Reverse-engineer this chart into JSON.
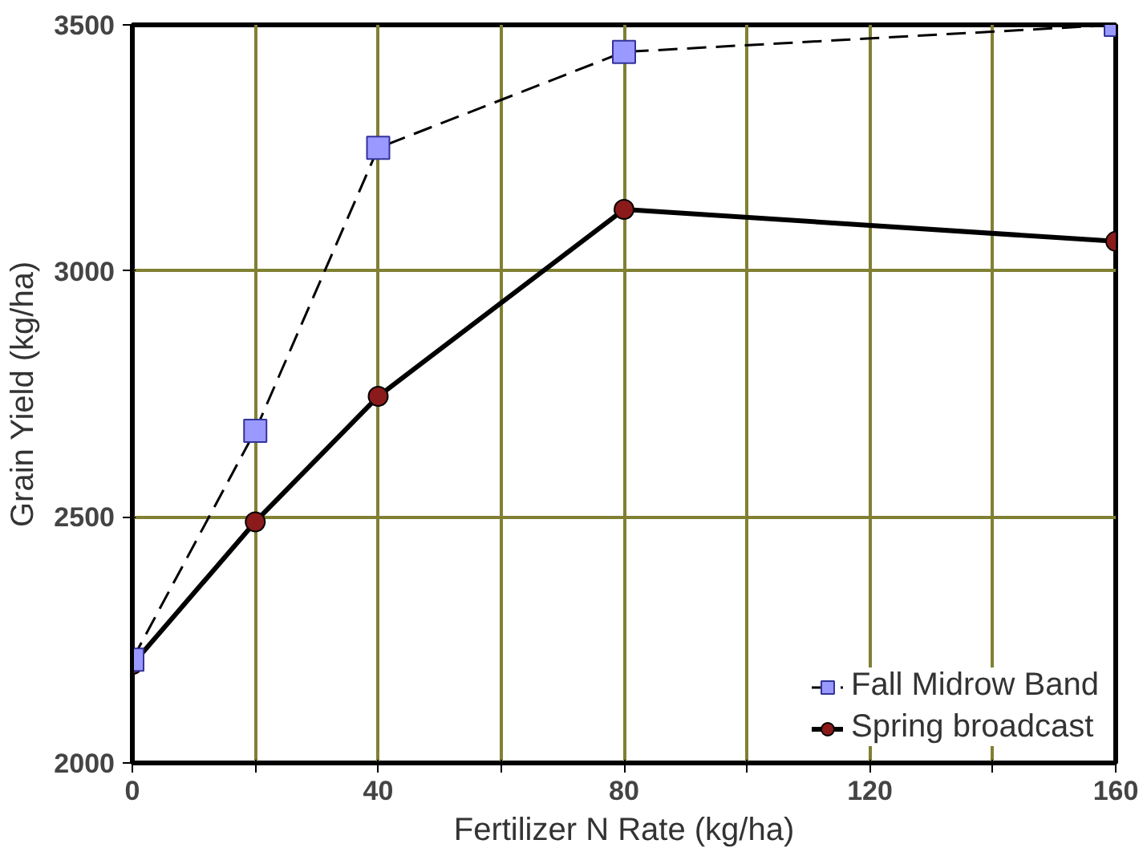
{
  "chart_data": {
    "type": "line",
    "xlabel": "Fertilizer N Rate (kg/ha)",
    "ylabel": "Grain Yield (kg/ha)",
    "x": [
      0,
      20,
      40,
      80,
      160
    ],
    "series": [
      {
        "name": "Fall Midrow Band",
        "color": "#9999ff",
        "values": [
          2210,
          2675,
          3250,
          3445,
          3500
        ],
        "marker": "square",
        "line_style": "dashed"
      },
      {
        "name": "Spring broadcast",
        "color": "#000000",
        "values": [
          2200,
          2490,
          2745,
          3125,
          3060
        ],
        "marker": "circle",
        "line_style": "solid"
      }
    ],
    "xlim": [
      0,
      160
    ],
    "ylim": [
      2000,
      3500
    ],
    "xticks": [
      0,
      {
        "value": 20,
        "label": null
      },
      40,
      {
        "value": 60,
        "label": null
      },
      80,
      {
        "value": 100,
        "label": null
      },
      120,
      {
        "value": 140,
        "label": null
      },
      160
    ],
    "yticks": [
      2000,
      2500,
      3000,
      3500
    ],
    "grid": true,
    "legend": "bottom right"
  }
}
